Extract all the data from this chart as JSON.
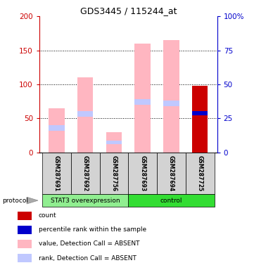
{
  "title": "GDS3445 / 115244_at",
  "samples": [
    "GSM287691",
    "GSM287692",
    "GSM287756",
    "GSM287693",
    "GSM287694",
    "GSM287725"
  ],
  "value_absent": [
    65,
    110,
    30,
    160,
    165,
    0
  ],
  "rank_absent_bottom": [
    32,
    53,
    12,
    70,
    68,
    0
  ],
  "rank_absent_height": [
    8,
    8,
    6,
    8,
    8,
    0
  ],
  "count": [
    0,
    0,
    0,
    0,
    0,
    98
  ],
  "percentile_rank_left": [
    0,
    0,
    0,
    0,
    0,
    55
  ],
  "percentile_rank_height": [
    0,
    0,
    0,
    0,
    0,
    6
  ],
  "protocol_groups": [
    {
      "label": "STAT3 overexpression",
      "samples": [
        0,
        1,
        2
      ],
      "color": "#90ee90"
    },
    {
      "label": "control",
      "samples": [
        3,
        4,
        5
      ],
      "color": "#33dd33"
    }
  ],
  "ylim_left": [
    0,
    200
  ],
  "ylim_right": [
    0,
    100
  ],
  "yticks_left": [
    0,
    50,
    100,
    150,
    200
  ],
  "yticks_right": [
    0,
    25,
    50,
    75,
    100
  ],
  "yticklabels_right": [
    "0",
    "25",
    "50",
    "75",
    "100%"
  ],
  "color_value_absent": "#ffb6c1",
  "color_rank_absent": "#c0c8ff",
  "color_count": "#cc0000",
  "color_percentile": "#0000cc",
  "color_left_axis": "#cc0000",
  "color_right_axis": "#0000cc",
  "bar_width": 0.55,
  "legend_items": [
    {
      "color": "#cc0000",
      "label": "count"
    },
    {
      "color": "#0000cc",
      "label": "percentile rank within the sample"
    },
    {
      "color": "#ffb6c1",
      "label": "value, Detection Call = ABSENT"
    },
    {
      "color": "#c0c8ff",
      "label": "rank, Detection Call = ABSENT"
    }
  ]
}
